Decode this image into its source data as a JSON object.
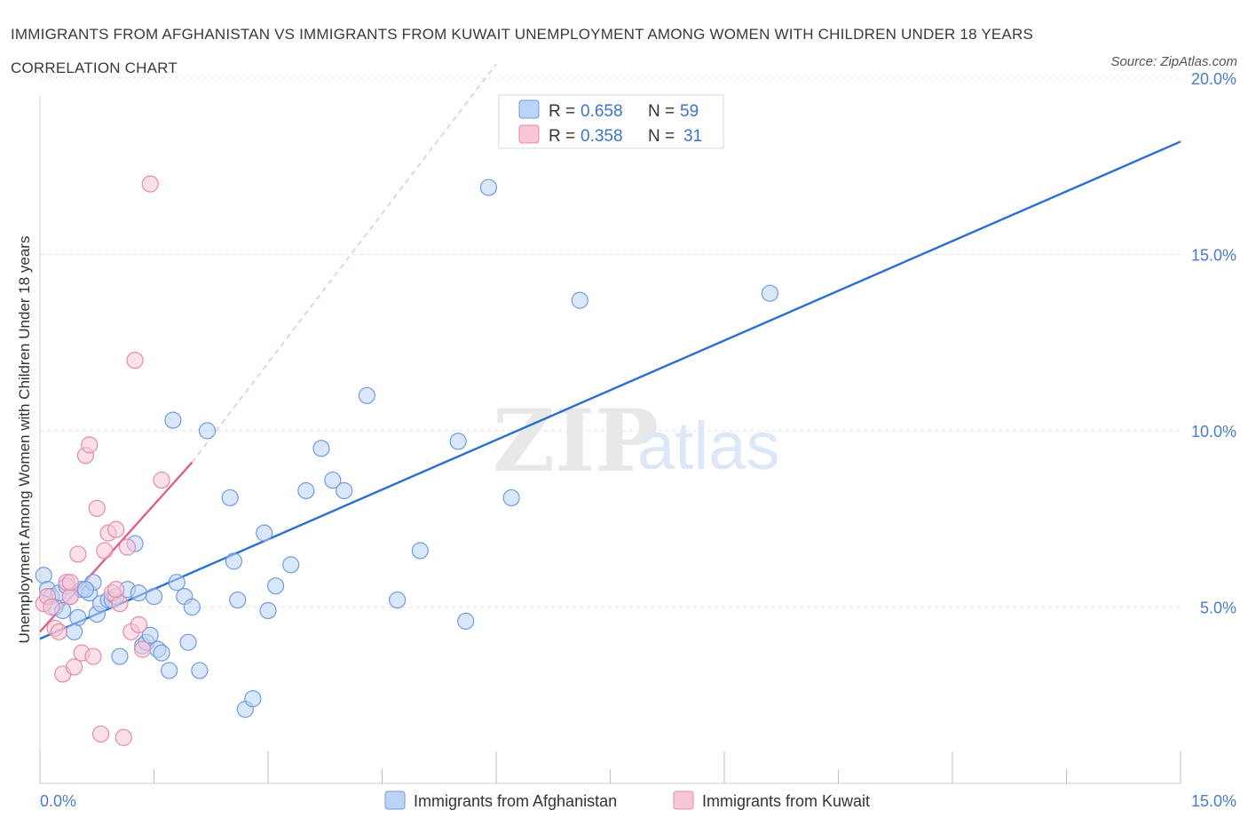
{
  "title": "IMMIGRANTS FROM AFGHANISTAN VS IMMIGRANTS FROM KUWAIT UNEMPLOYMENT AMONG WOMEN WITH CHILDREN UNDER 18 YEARS CORRELATION CHART",
  "source": "Source: ZipAtlas.com",
  "watermark": {
    "zip": "ZIP",
    "atlas": "atlas"
  },
  "colors": {
    "afghanistan_fill": "#bcd3f5",
    "afghanistan_stroke": "#6f9be0",
    "afghanistan_line": "#2a6fcf",
    "kuwait_fill": "#f8c6d6",
    "kuwait_stroke": "#e58aa8",
    "kuwait_line": "#e0608c",
    "grid": "#e3e3e3",
    "tick_text": "#4a7cc7"
  },
  "legend": {
    "rows": [
      {
        "r_label": "R = ",
        "r_value": "0.658",
        "n_label": "N = ",
        "n_value": "59"
      },
      {
        "r_label": "R = ",
        "r_value": "0.358",
        "n_label": "N = ",
        "n_value": "31"
      }
    ]
  },
  "chart_data": {
    "type": "scatter",
    "title": "IMMIGRANTS FROM AFGHANISTAN VS IMMIGRANTS FROM KUWAIT UNEMPLOYMENT AMONG WOMEN WITH CHILDREN UNDER 18 YEARS CORRELATION CHART",
    "xlabel": "",
    "ylabel": "Unemployment Among Women with Children Under 18 years",
    "xlim": [
      0,
      15
    ],
    "ylim": [
      0,
      20
    ],
    "x_tick_labels": [
      "0.0%",
      "15.0%"
    ],
    "y_ticks": [
      5,
      10,
      15,
      20
    ],
    "y_tick_labels": [
      "5.0%",
      "10.0%",
      "15.0%",
      "20.0%"
    ],
    "grid": true,
    "legend_position": "top-center",
    "series": [
      {
        "name": "Immigrants from Afghanistan",
        "R": 0.658,
        "N": 59,
        "trend": {
          "x": [
            0,
            15
          ],
          "y": [
            4.1,
            18.2
          ],
          "dashed_extension": false
        },
        "points": [
          [
            0.05,
            5.9
          ],
          [
            0.1,
            5.5
          ],
          [
            0.15,
            5.3
          ],
          [
            0.2,
            5.0
          ],
          [
            0.25,
            5.4
          ],
          [
            0.3,
            4.9
          ],
          [
            0.35,
            5.6
          ],
          [
            0.4,
            5.3
          ],
          [
            0.5,
            4.7
          ],
          [
            0.55,
            5.5
          ],
          [
            0.65,
            5.4
          ],
          [
            0.7,
            5.7
          ],
          [
            0.75,
            4.8
          ],
          [
            0.8,
            5.1
          ],
          [
            0.9,
            5.2
          ],
          [
            0.95,
            5.2
          ],
          [
            1.0,
            5.3
          ],
          [
            1.05,
            3.6
          ],
          [
            1.15,
            5.5
          ],
          [
            1.25,
            6.8
          ],
          [
            1.3,
            5.4
          ],
          [
            1.35,
            3.9
          ],
          [
            1.4,
            4.0
          ],
          [
            1.45,
            4.2
          ],
          [
            1.55,
            3.8
          ],
          [
            1.6,
            3.7
          ],
          [
            1.7,
            3.2
          ],
          [
            1.75,
            10.3
          ],
          [
            1.9,
            5.3
          ],
          [
            1.95,
            4.0
          ],
          [
            2.0,
            5.0
          ],
          [
            2.1,
            3.2
          ],
          [
            2.2,
            10.0
          ],
          [
            2.5,
            8.1
          ],
          [
            2.55,
            6.3
          ],
          [
            2.6,
            5.2
          ],
          [
            2.7,
            2.1
          ],
          [
            2.8,
            2.4
          ],
          [
            2.95,
            7.1
          ],
          [
            3.0,
            4.9
          ],
          [
            3.1,
            5.6
          ],
          [
            3.3,
            6.2
          ],
          [
            3.5,
            8.3
          ],
          [
            3.7,
            9.5
          ],
          [
            3.85,
            8.6
          ],
          [
            4.0,
            8.3
          ],
          [
            4.3,
            11.0
          ],
          [
            4.7,
            5.2
          ],
          [
            5.0,
            6.6
          ],
          [
            5.5,
            9.7
          ],
          [
            5.6,
            4.6
          ],
          [
            5.9,
            16.9
          ],
          [
            6.2,
            8.1
          ],
          [
            7.1,
            13.7
          ],
          [
            9.6,
            13.9
          ],
          [
            0.45,
            4.3
          ],
          [
            0.6,
            5.5
          ],
          [
            1.5,
            5.3
          ],
          [
            1.8,
            5.7
          ]
        ]
      },
      {
        "name": "Immigrants from Kuwait",
        "R": 0.358,
        "N": 31,
        "trend": {
          "x": [
            0,
            2.0
          ],
          "y": [
            4.3,
            9.1
          ],
          "dashed_extension": true,
          "dashed_to": [
            6.0,
            20.4
          ]
        },
        "points": [
          [
            0.05,
            5.1
          ],
          [
            0.1,
            5.3
          ],
          [
            0.15,
            5.0
          ],
          [
            0.2,
            4.4
          ],
          [
            0.25,
            4.3
          ],
          [
            0.3,
            3.1
          ],
          [
            0.35,
            5.7
          ],
          [
            0.4,
            5.3
          ],
          [
            0.45,
            3.3
          ],
          [
            0.5,
            6.5
          ],
          [
            0.55,
            3.7
          ],
          [
            0.6,
            9.3
          ],
          [
            0.65,
            9.6
          ],
          [
            0.7,
            3.6
          ],
          [
            0.75,
            7.8
          ],
          [
            0.8,
            1.4
          ],
          [
            0.85,
            6.6
          ],
          [
            0.9,
            7.1
          ],
          [
            0.95,
            5.4
          ],
          [
            1.0,
            7.2
          ],
          [
            1.05,
            5.1
          ],
          [
            1.1,
            1.3
          ],
          [
            1.15,
            6.7
          ],
          [
            1.2,
            4.3
          ],
          [
            1.25,
            12.0
          ],
          [
            1.3,
            4.5
          ],
          [
            1.35,
            3.8
          ],
          [
            1.45,
            17.0
          ],
          [
            1.6,
            8.6
          ],
          [
            0.4,
            5.7
          ],
          [
            1.0,
            5.5
          ]
        ]
      }
    ]
  }
}
